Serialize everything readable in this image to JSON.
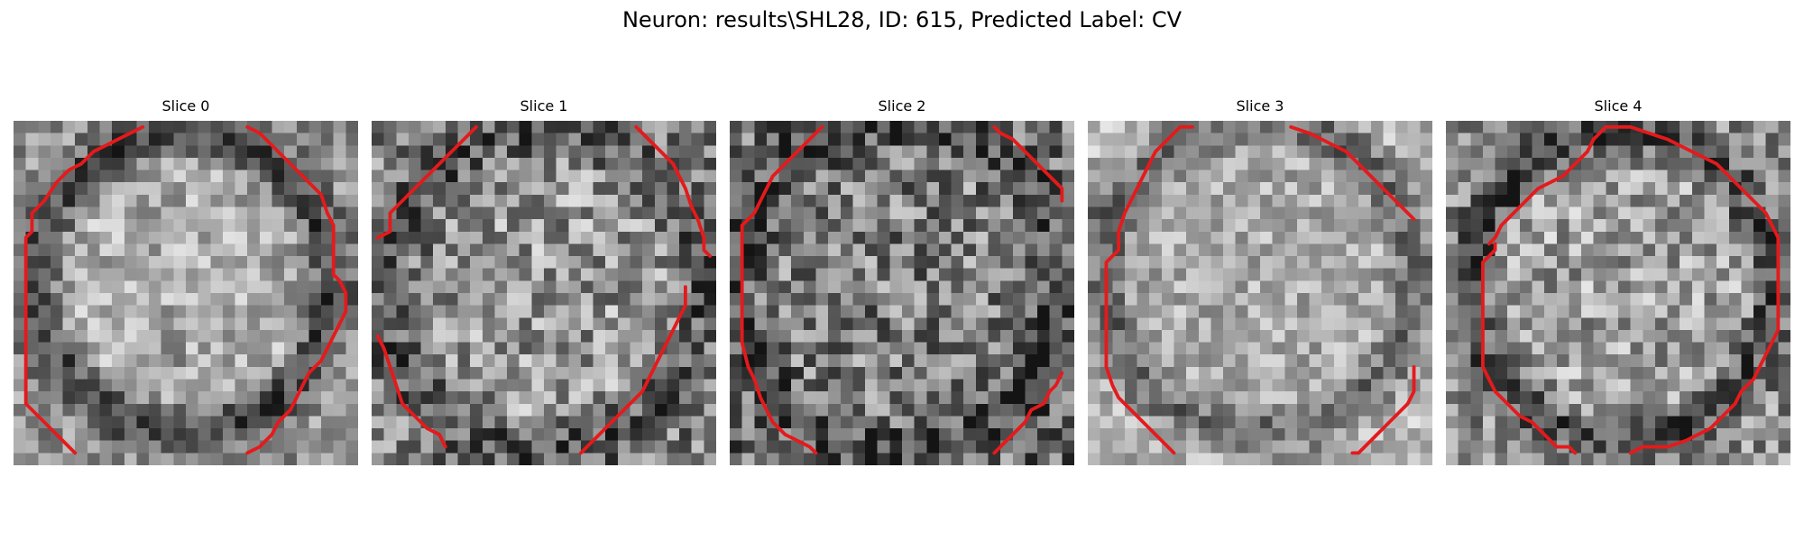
{
  "figure": {
    "title": "Neuron: results\\SHL28, ID: 615, Predicted Label: CV"
  },
  "contour_color": "#e41a1c",
  "panels": [
    {
      "title": "Slice 0"
    },
    {
      "title": "Slice 1"
    },
    {
      "title": "Slice 2"
    },
    {
      "title": "Slice 3"
    },
    {
      "title": "Slice 4"
    }
  ]
}
